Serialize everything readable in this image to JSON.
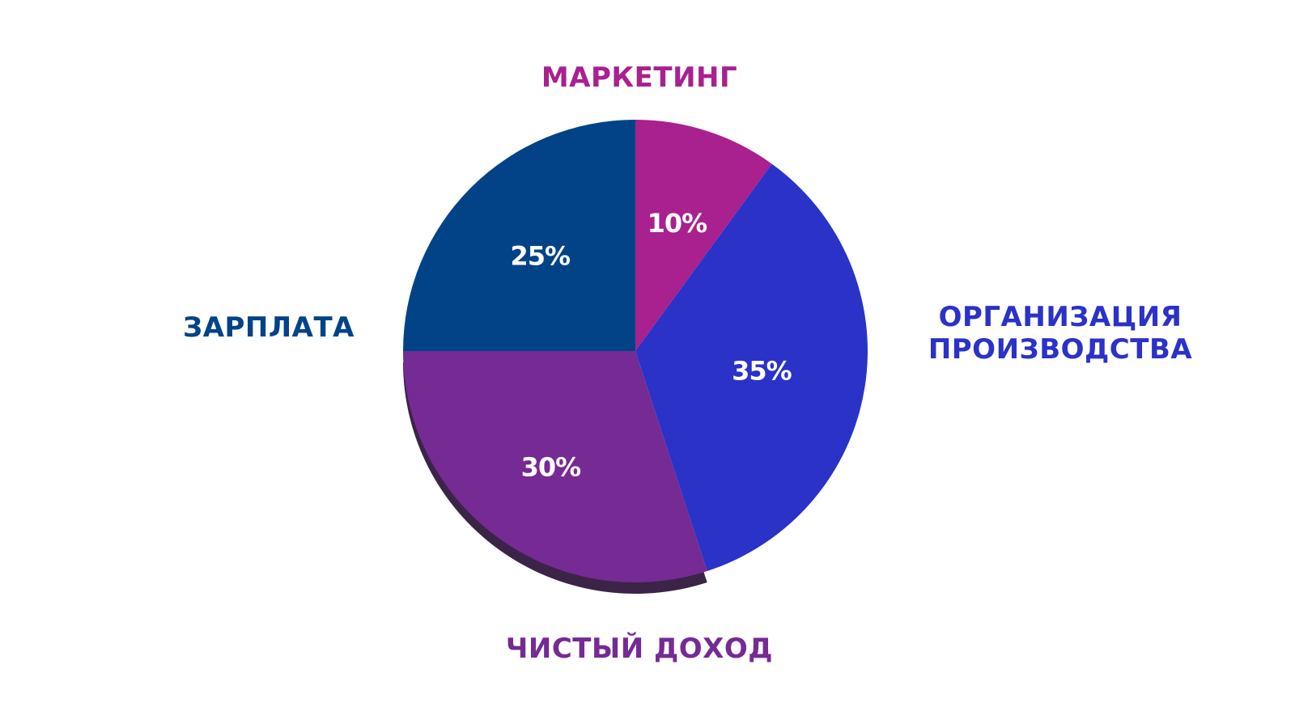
{
  "chart_data": {
    "type": "pie",
    "title": "",
    "slices": [
      {
        "name": "МАРКЕТИНГ",
        "value": 10,
        "label": "10%",
        "color": "#a8218f"
      },
      {
        "name": "ОРГАНИЗАЦИЯ\nПРОИЗВОДСТВА",
        "value": 35,
        "label": "35%",
        "color": "#2a32c7"
      },
      {
        "name": "ЧИСТЫЙ ДОХОД",
        "value": 30,
        "label": "30%",
        "color": "#752a94"
      },
      {
        "name": "ЗАРПЛАТА",
        "value": 25,
        "label": "25%",
        "color": "#024388"
      }
    ],
    "shadow_color": "#3b2448",
    "label_colors": {
      "marketing": "#a8218f",
      "production": "#2a32c7",
      "net": "#752a94",
      "salary": "#024388"
    }
  }
}
